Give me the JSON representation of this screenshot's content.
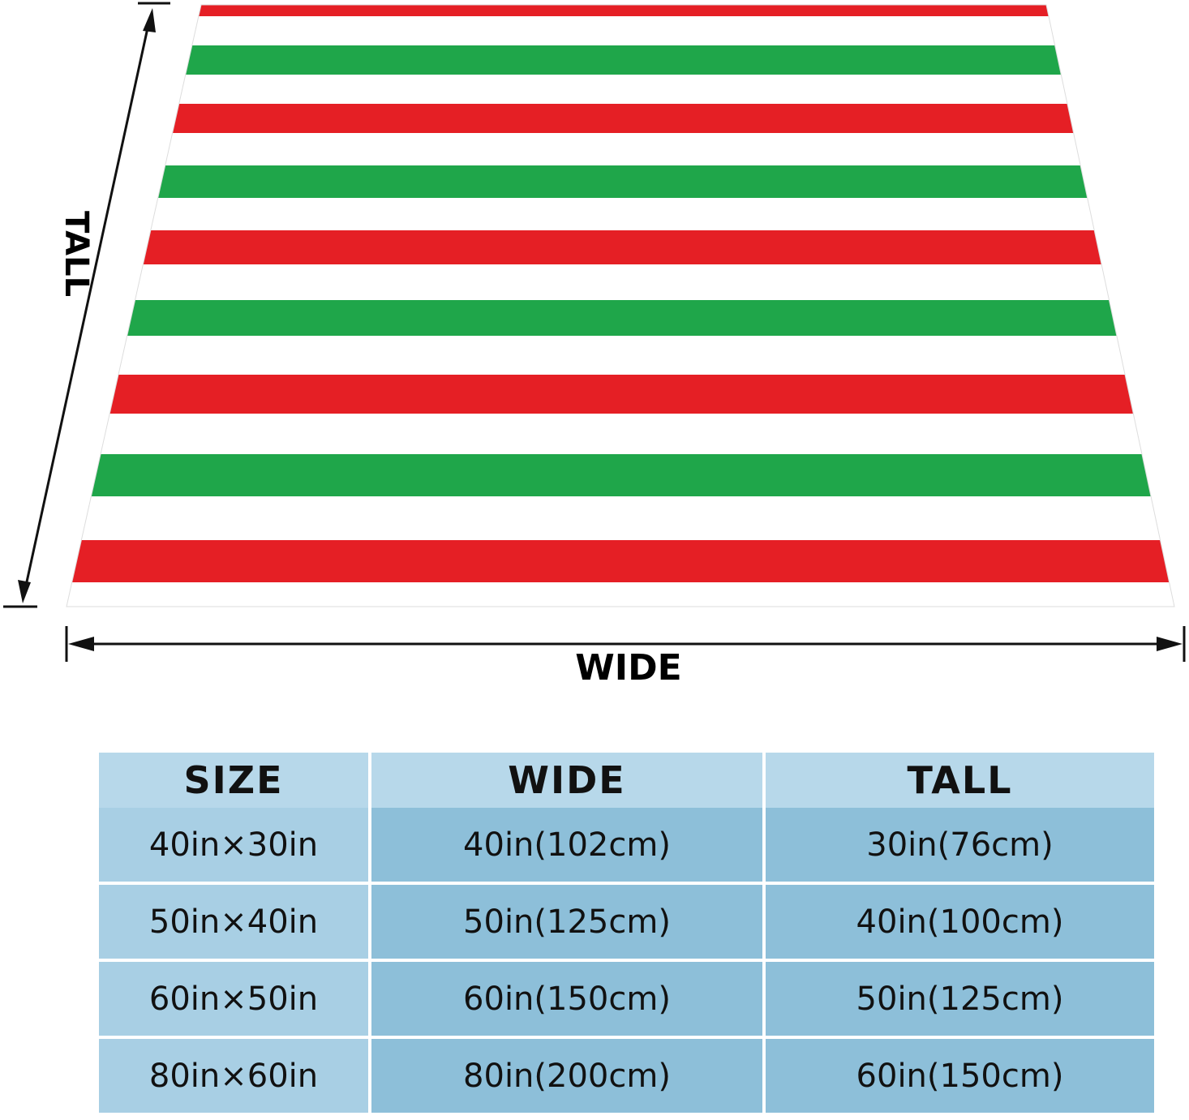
{
  "colors": {
    "red": "#e51f25",
    "green": "#1fa64a",
    "white": "#ffffff",
    "header_bg": "#b7d8ea",
    "cell_light": "#a8cfe4",
    "cell_dark": "#8dbfd9"
  },
  "stripes": [
    "red",
    "white",
    "green",
    "white",
    "red",
    "white",
    "green",
    "white",
    "red",
    "white",
    "green",
    "white",
    "red",
    "white",
    "green",
    "white",
    "red"
  ],
  "labels": {
    "wide": "WIDE",
    "tall": "TALL"
  },
  "table": {
    "headers": [
      "SIZE",
      "WIDE",
      "TALL"
    ],
    "rows": [
      [
        "40in×30in",
        "40in(102cm)",
        "30in(76cm)"
      ],
      [
        "50in×40in",
        "50in(125cm)",
        "40in(100cm)"
      ],
      [
        "60in×50in",
        "60in(150cm)",
        "50in(125cm)"
      ],
      [
        "80in×60in",
        "80in(200cm)",
        "60in(150cm)"
      ]
    ]
  }
}
